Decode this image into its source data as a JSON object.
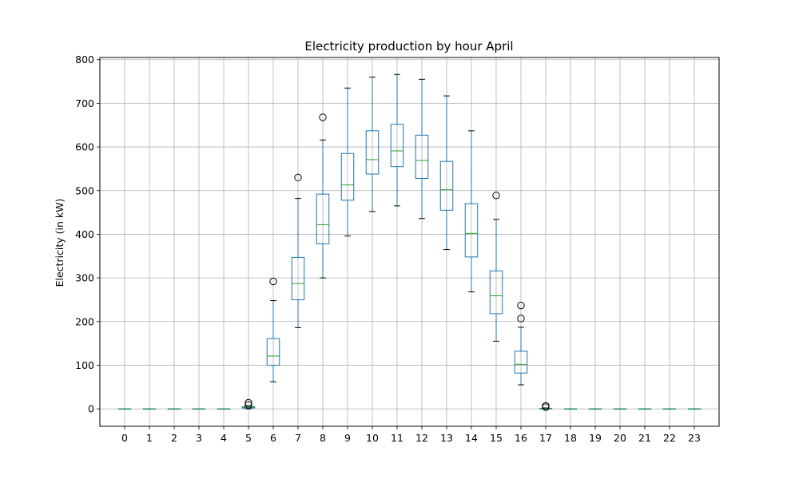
{
  "chart_data": {
    "type": "box",
    "title": "Electricity production by hour April",
    "xlabel": "",
    "ylabel": "Electricity (in kW)",
    "ylim": [
      -40,
      805
    ],
    "yticks": [
      0,
      100,
      200,
      300,
      400,
      500,
      600,
      700,
      800
    ],
    "grid": true,
    "colors": {
      "box": "#1f77b4",
      "median": "#2ca02c",
      "whisker": "#1f77b4",
      "cap": "#000000",
      "flier": "#000000",
      "grid": "#b0b0b0"
    },
    "boxes": [
      {
        "category": "0",
        "whislo": 0,
        "q1": 0,
        "med": 0,
        "q3": 0,
        "whishi": 0,
        "fliers": []
      },
      {
        "category": "1",
        "whislo": 0,
        "q1": 0,
        "med": 0,
        "q3": 0,
        "whishi": 0,
        "fliers": []
      },
      {
        "category": "2",
        "whislo": 0,
        "q1": 0,
        "med": 0,
        "q3": 0,
        "whishi": 0,
        "fliers": []
      },
      {
        "category": "3",
        "whislo": 0,
        "q1": 0,
        "med": 0,
        "q3": 0,
        "whishi": 0,
        "fliers": []
      },
      {
        "category": "4",
        "whislo": 0,
        "q1": 0,
        "med": 0,
        "q3": 0,
        "whishi": 0,
        "fliers": []
      },
      {
        "category": "5",
        "whislo": 0,
        "q1": 2,
        "med": 3,
        "q3": 5,
        "whishi": 6,
        "fliers": [
          9,
          14
        ]
      },
      {
        "category": "6",
        "whislo": 62,
        "q1": 100,
        "med": 121,
        "q3": 161,
        "whishi": 248,
        "fliers": [
          292
        ]
      },
      {
        "category": "7",
        "whislo": 186,
        "q1": 250,
        "med": 287,
        "q3": 347,
        "whishi": 482,
        "fliers": [
          530
        ]
      },
      {
        "category": "8",
        "whislo": 300,
        "q1": 378,
        "med": 422,
        "q3": 492,
        "whishi": 616,
        "fliers": [
          668
        ]
      },
      {
        "category": "9",
        "whislo": 396,
        "q1": 478,
        "med": 513,
        "q3": 585,
        "whishi": 735,
        "fliers": []
      },
      {
        "category": "10",
        "whislo": 452,
        "q1": 538,
        "med": 571,
        "q3": 637,
        "whishi": 760,
        "fliers": []
      },
      {
        "category": "11",
        "whislo": 465,
        "q1": 555,
        "med": 591,
        "q3": 652,
        "whishi": 766,
        "fliers": []
      },
      {
        "category": "12",
        "whislo": 436,
        "q1": 528,
        "med": 569,
        "q3": 627,
        "whishi": 755,
        "fliers": []
      },
      {
        "category": "13",
        "whislo": 365,
        "q1": 455,
        "med": 502,
        "q3": 567,
        "whishi": 717,
        "fliers": []
      },
      {
        "category": "14",
        "whislo": 268,
        "q1": 348,
        "med": 402,
        "q3": 470,
        "whishi": 637,
        "fliers": []
      },
      {
        "category": "15",
        "whislo": 155,
        "q1": 218,
        "med": 259,
        "q3": 316,
        "whishi": 434,
        "fliers": [
          489
        ]
      },
      {
        "category": "16",
        "whislo": 55,
        "q1": 82,
        "med": 102,
        "q3": 132,
        "whishi": 187,
        "fliers": [
          207,
          237
        ]
      },
      {
        "category": "17",
        "whislo": 0,
        "q1": 0,
        "med": 0,
        "q3": 1,
        "whishi": 2,
        "fliers": [
          4,
          7
        ]
      },
      {
        "category": "18",
        "whislo": 0,
        "q1": 0,
        "med": 0,
        "q3": 0,
        "whishi": 0,
        "fliers": []
      },
      {
        "category": "19",
        "whislo": 0,
        "q1": 0,
        "med": 0,
        "q3": 0,
        "whishi": 0,
        "fliers": []
      },
      {
        "category": "20",
        "whislo": 0,
        "q1": 0,
        "med": 0,
        "q3": 0,
        "whishi": 0,
        "fliers": []
      },
      {
        "category": "21",
        "whislo": 0,
        "q1": 0,
        "med": 0,
        "q3": 0,
        "whishi": 0,
        "fliers": []
      },
      {
        "category": "22",
        "whislo": 0,
        "q1": 0,
        "med": 0,
        "q3": 0,
        "whishi": 0,
        "fliers": []
      },
      {
        "category": "23",
        "whislo": 0,
        "q1": 0,
        "med": 0,
        "q3": 0,
        "whishi": 0,
        "fliers": []
      }
    ]
  }
}
